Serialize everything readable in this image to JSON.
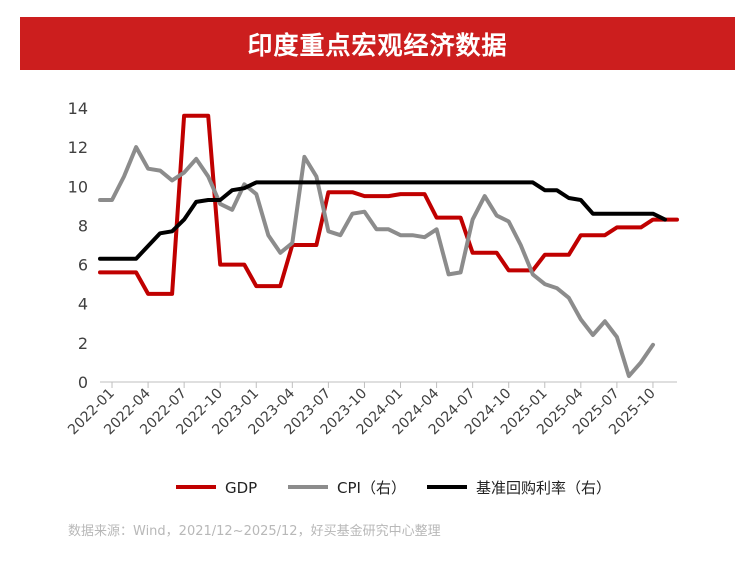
{
  "header": {
    "title": "印度重点宏观经济数据"
  },
  "source": "数据来源：Wind，2021/12~2025/12，好买基金研究中心整理",
  "chart_data": {
    "type": "line",
    "title": "印度重点宏观经济数据",
    "xlabel": "",
    "ylabel": "",
    "ylim": [
      0,
      14
    ],
    "yticks": [
      0,
      2,
      4,
      6,
      8,
      10,
      12,
      14
    ],
    "xlim": [
      "2021-12",
      "2025-12"
    ],
    "xtick_labels": [
      "2022-01",
      "2022-04",
      "2022-07",
      "2022-10",
      "2023-01",
      "2023-04",
      "2023-07",
      "2023-10",
      "2024-01",
      "2024-04",
      "2024-07",
      "2024-10",
      "2025-01",
      "2025-04",
      "2025-07",
      "2025-10"
    ],
    "grid": false,
    "legend": "bottom",
    "series": [
      {
        "name": "GDP",
        "color": "#c00000",
        "step": true,
        "points": [
          [
            "2021-12",
            5.6
          ],
          [
            "2022-03",
            5.6
          ],
          [
            "2022-04",
            4.5
          ],
          [
            "2022-06",
            4.5
          ],
          [
            "2022-07",
            13.6
          ],
          [
            "2022-09",
            13.6
          ],
          [
            "2022-10",
            6.0
          ],
          [
            "2022-12",
            6.0
          ],
          [
            "2023-01",
            4.9
          ],
          [
            "2023-03",
            4.9
          ],
          [
            "2023-04",
            7.0
          ],
          [
            "2023-06",
            7.0
          ],
          [
            "2023-07",
            9.7
          ],
          [
            "2023-09",
            9.7
          ],
          [
            "2023-10",
            9.5
          ],
          [
            "2023-12",
            9.5
          ],
          [
            "2024-01",
            9.6
          ],
          [
            "2024-03",
            9.6
          ],
          [
            "2024-04",
            8.4
          ],
          [
            "2024-06",
            8.4
          ],
          [
            "2024-07",
            6.6
          ],
          [
            "2024-09",
            6.6
          ],
          [
            "2024-10",
            5.7
          ],
          [
            "2024-12",
            5.7
          ],
          [
            "2025-01",
            6.5
          ],
          [
            "2025-03",
            6.5
          ],
          [
            "2025-04",
            7.5
          ],
          [
            "2025-06",
            7.5
          ],
          [
            "2025-07",
            7.9
          ],
          [
            "2025-09",
            7.9
          ],
          [
            "2025-10",
            8.3
          ],
          [
            "2025-12",
            8.3
          ]
        ]
      },
      {
        "name": "CPI（右）",
        "color": "#8c8c8c",
        "step": false,
        "points": [
          [
            "2021-12",
            9.3
          ],
          [
            "2022-01",
            9.3
          ],
          [
            "2022-02",
            10.5
          ],
          [
            "2022-03",
            12.0
          ],
          [
            "2022-04",
            10.9
          ],
          [
            "2022-05",
            10.8
          ],
          [
            "2022-06",
            10.3
          ],
          [
            "2022-07",
            10.7
          ],
          [
            "2022-08",
            11.4
          ],
          [
            "2022-09",
            10.5
          ],
          [
            "2022-10",
            9.1
          ],
          [
            "2022-11",
            8.8
          ],
          [
            "2022-12",
            10.1
          ],
          [
            "2023-01",
            9.6
          ],
          [
            "2023-02",
            7.5
          ],
          [
            "2023-03",
            6.6
          ],
          [
            "2023-04",
            7.1
          ],
          [
            "2023-05",
            11.5
          ],
          [
            "2023-06",
            10.5
          ],
          [
            "2023-07",
            7.7
          ],
          [
            "2023-08",
            7.5
          ],
          [
            "2023-09",
            8.6
          ],
          [
            "2023-10",
            8.7
          ],
          [
            "2023-11",
            7.8
          ],
          [
            "2023-12",
            7.8
          ],
          [
            "2024-01",
            7.5
          ],
          [
            "2024-02",
            7.5
          ],
          [
            "2024-03",
            7.4
          ],
          [
            "2024-04",
            7.8
          ],
          [
            "2024-05",
            5.5
          ],
          [
            "2024-06",
            5.6
          ],
          [
            "2024-07",
            8.3
          ],
          [
            "2024-08",
            9.5
          ],
          [
            "2024-09",
            8.5
          ],
          [
            "2024-10",
            8.2
          ],
          [
            "2024-11",
            7.0
          ],
          [
            "2024-12",
            5.5
          ],
          [
            "2025-01",
            5.0
          ],
          [
            "2025-02",
            4.8
          ],
          [
            "2025-03",
            4.3
          ],
          [
            "2025-04",
            3.2
          ],
          [
            "2025-05",
            2.4
          ],
          [
            "2025-06",
            3.1
          ],
          [
            "2025-07",
            2.3
          ],
          [
            "2025-08",
            0.3
          ],
          [
            "2025-09",
            1.0
          ],
          [
            "2025-10",
            1.9
          ]
        ]
      },
      {
        "name": "基准回购利率（右）",
        "color": "#000000",
        "step": false,
        "points": [
          [
            "2021-12",
            6.3
          ],
          [
            "2022-03",
            6.3
          ],
          [
            "2022-05",
            7.6
          ],
          [
            "2022-06",
            7.7
          ],
          [
            "2022-07",
            8.3
          ],
          [
            "2022-08",
            9.2
          ],
          [
            "2022-09",
            9.3
          ],
          [
            "2022-10",
            9.3
          ],
          [
            "2022-11",
            9.8
          ],
          [
            "2022-12",
            9.9
          ],
          [
            "2023-01",
            10.2
          ],
          [
            "2024-11",
            10.2
          ],
          [
            "2024-12",
            10.2
          ],
          [
            "2025-01",
            9.8
          ],
          [
            "2025-02",
            9.8
          ],
          [
            "2025-03",
            9.4
          ],
          [
            "2025-04",
            9.3
          ],
          [
            "2025-05",
            8.6
          ],
          [
            "2025-06",
            8.6
          ],
          [
            "2025-10",
            8.6
          ],
          [
            "2025-11",
            8.3
          ]
        ]
      }
    ]
  }
}
